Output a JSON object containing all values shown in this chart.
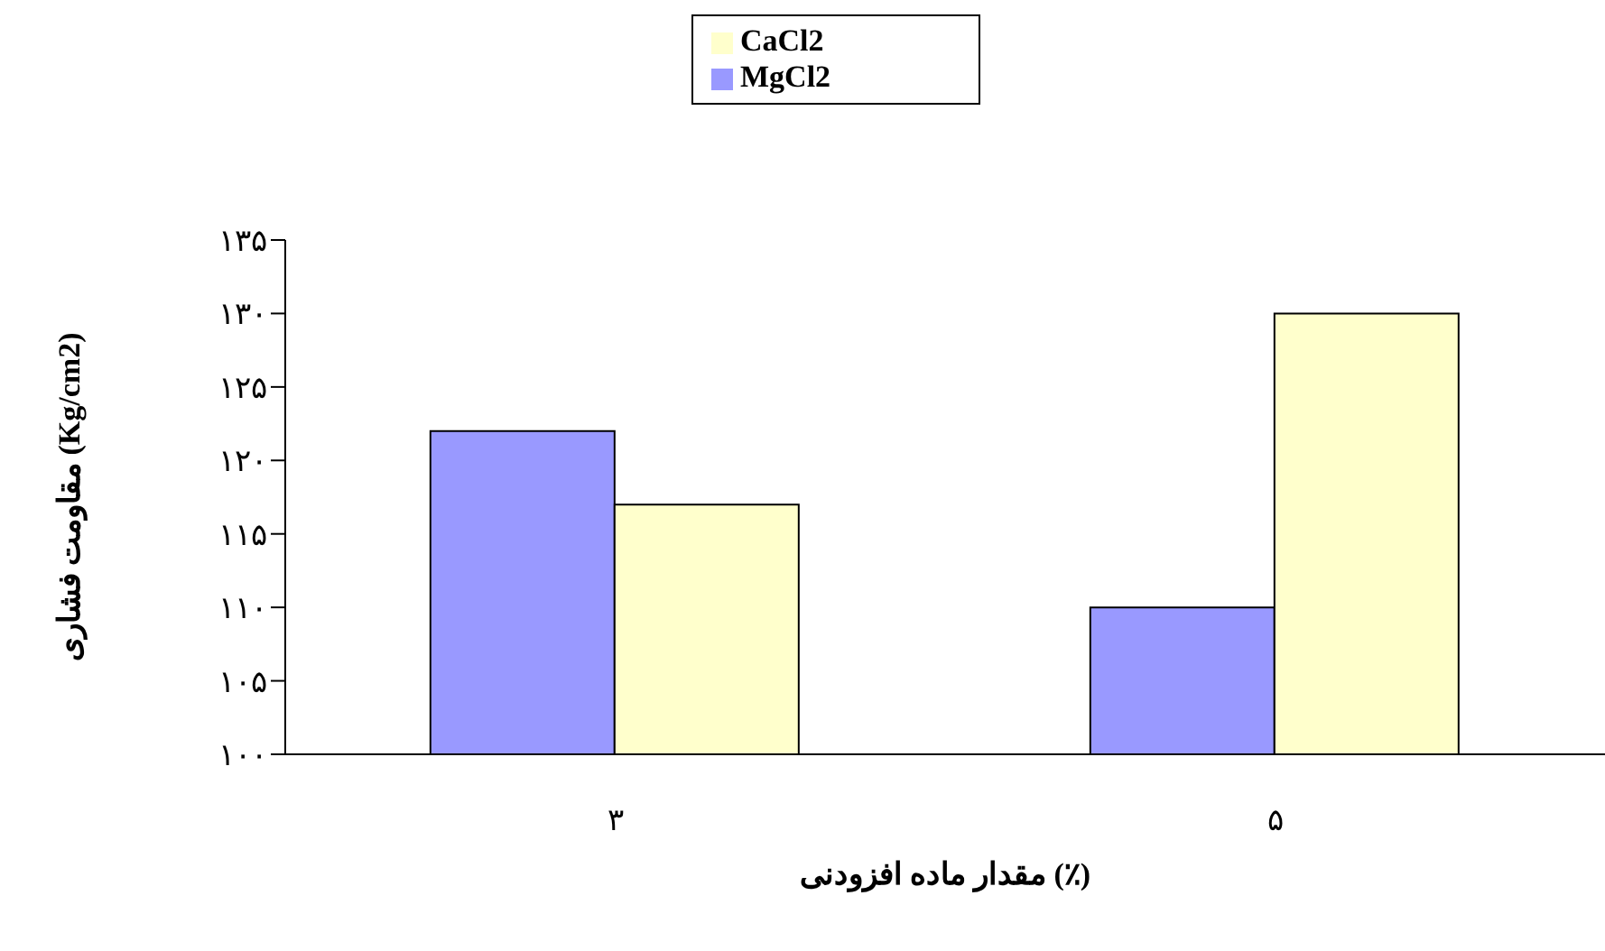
{
  "chart_data": {
    "type": "bar",
    "xlabel": "مقدار ماده افزودنی (٪)",
    "ylabel": "مقاومت فشاری (Kg/cm2)",
    "categories": [
      "۳",
      "۵"
    ],
    "series": [
      {
        "name": "MgCl2",
        "color": "#9999ff",
        "values": [
          122,
          110
        ]
      },
      {
        "name": "CaCl2",
        "color": "#ffffcc",
        "values": [
          117,
          130
        ]
      }
    ],
    "ylim": [
      100,
      135
    ],
    "yticks": [
      {
        "value": 100,
        "label": "۱۰۰"
      },
      {
        "value": 105,
        "label": "۱۰۵"
      },
      {
        "value": 110,
        "label": "۱۱۰"
      },
      {
        "value": 115,
        "label": "۱۱۵"
      },
      {
        "value": 120,
        "label": "۱۲۰"
      },
      {
        "value": 125,
        "label": "۱۲۵"
      },
      {
        "value": 130,
        "label": "۱۳۰"
      },
      {
        "value": 135,
        "label": "۱۳۵"
      }
    ],
    "grid": false,
    "legend": "top"
  }
}
